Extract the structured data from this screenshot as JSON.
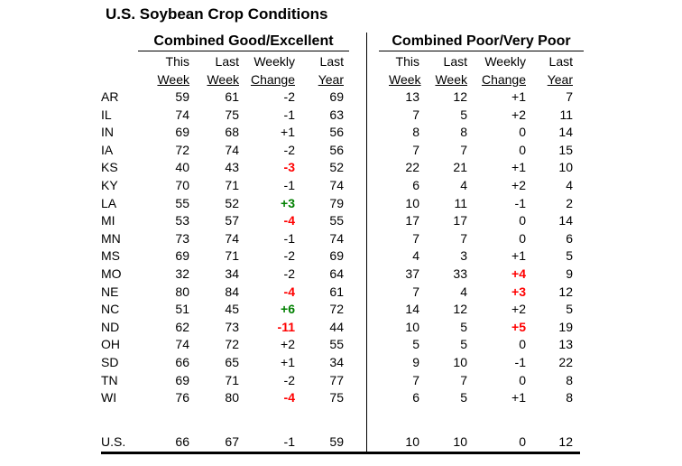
{
  "title": "U.S. Soybean Crop Conditions",
  "sections": [
    {
      "title": "Combined Good/Excellent"
    },
    {
      "title": "Combined Poor/Very Poor"
    }
  ],
  "column_headers": {
    "line1": [
      "This",
      "Last",
      "Weekly",
      "Last"
    ],
    "line2": [
      "Week",
      "Week",
      "Change",
      "Year"
    ]
  },
  "colors": {
    "highlight_red": "#ff0000",
    "highlight_green": "#008000",
    "text": "#000000",
    "background": "#ffffff"
  },
  "rows": [
    {
      "state": "AR",
      "good_excellent": {
        "this_week": "59",
        "last_week": "61",
        "change": "-2",
        "change_color": null,
        "last_year": "69"
      },
      "poor_very_poor": {
        "this_week": "13",
        "last_week": "12",
        "change": "+1",
        "change_color": null,
        "last_year": "7"
      }
    },
    {
      "state": "IL",
      "good_excellent": {
        "this_week": "74",
        "last_week": "75",
        "change": "-1",
        "change_color": null,
        "last_year": "63"
      },
      "poor_very_poor": {
        "this_week": "7",
        "last_week": "5",
        "change": "+2",
        "change_color": null,
        "last_year": "11"
      }
    },
    {
      "state": "IN",
      "good_excellent": {
        "this_week": "69",
        "last_week": "68",
        "change": "+1",
        "change_color": null,
        "last_year": "56"
      },
      "poor_very_poor": {
        "this_week": "8",
        "last_week": "8",
        "change": "0",
        "change_color": null,
        "last_year": "14"
      }
    },
    {
      "state": "IA",
      "good_excellent": {
        "this_week": "72",
        "last_week": "74",
        "change": "-2",
        "change_color": null,
        "last_year": "56"
      },
      "poor_very_poor": {
        "this_week": "7",
        "last_week": "7",
        "change": "0",
        "change_color": null,
        "last_year": "15"
      }
    },
    {
      "state": "KS",
      "good_excellent": {
        "this_week": "40",
        "last_week": "43",
        "change": "-3",
        "change_color": "red",
        "last_year": "52"
      },
      "poor_very_poor": {
        "this_week": "22",
        "last_week": "21",
        "change": "+1",
        "change_color": null,
        "last_year": "10"
      }
    },
    {
      "state": "KY",
      "good_excellent": {
        "this_week": "70",
        "last_week": "71",
        "change": "-1",
        "change_color": null,
        "last_year": "74"
      },
      "poor_very_poor": {
        "this_week": "6",
        "last_week": "4",
        "change": "+2",
        "change_color": null,
        "last_year": "4"
      }
    },
    {
      "state": "LA",
      "good_excellent": {
        "this_week": "55",
        "last_week": "52",
        "change": "+3",
        "change_color": "green",
        "last_year": "79"
      },
      "poor_very_poor": {
        "this_week": "10",
        "last_week": "11",
        "change": "-1",
        "change_color": null,
        "last_year": "2"
      }
    },
    {
      "state": "MI",
      "good_excellent": {
        "this_week": "53",
        "last_week": "57",
        "change": "-4",
        "change_color": "red",
        "last_year": "55"
      },
      "poor_very_poor": {
        "this_week": "17",
        "last_week": "17",
        "change": "0",
        "change_color": null,
        "last_year": "14"
      }
    },
    {
      "state": "MN",
      "good_excellent": {
        "this_week": "73",
        "last_week": "74",
        "change": "-1",
        "change_color": null,
        "last_year": "74"
      },
      "poor_very_poor": {
        "this_week": "7",
        "last_week": "7",
        "change": "0",
        "change_color": null,
        "last_year": "6"
      }
    },
    {
      "state": "MS",
      "good_excellent": {
        "this_week": "69",
        "last_week": "71",
        "change": "-2",
        "change_color": null,
        "last_year": "69"
      },
      "poor_very_poor": {
        "this_week": "4",
        "last_week": "3",
        "change": "+1",
        "change_color": null,
        "last_year": "5"
      }
    },
    {
      "state": "MO",
      "good_excellent": {
        "this_week": "32",
        "last_week": "34",
        "change": "-2",
        "change_color": null,
        "last_year": "64"
      },
      "poor_very_poor": {
        "this_week": "37",
        "last_week": "33",
        "change": "+4",
        "change_color": "red",
        "last_year": "9"
      }
    },
    {
      "state": "NE",
      "good_excellent": {
        "this_week": "80",
        "last_week": "84",
        "change": "-4",
        "change_color": "red",
        "last_year": "61"
      },
      "poor_very_poor": {
        "this_week": "7",
        "last_week": "4",
        "change": "+3",
        "change_color": "red",
        "last_year": "12"
      }
    },
    {
      "state": "NC",
      "good_excellent": {
        "this_week": "51",
        "last_week": "45",
        "change": "+6",
        "change_color": "green",
        "last_year": "72"
      },
      "poor_very_poor": {
        "this_week": "14",
        "last_week": "12",
        "change": "+2",
        "change_color": null,
        "last_year": "5"
      }
    },
    {
      "state": "ND",
      "good_excellent": {
        "this_week": "62",
        "last_week": "73",
        "change": "-11",
        "change_color": "red",
        "last_year": "44"
      },
      "poor_very_poor": {
        "this_week": "10",
        "last_week": "5",
        "change": "+5",
        "change_color": "red",
        "last_year": "19"
      }
    },
    {
      "state": "OH",
      "good_excellent": {
        "this_week": "74",
        "last_week": "72",
        "change": "+2",
        "change_color": null,
        "last_year": "55"
      },
      "poor_very_poor": {
        "this_week": "5",
        "last_week": "5",
        "change": "0",
        "change_color": null,
        "last_year": "13"
      }
    },
    {
      "state": "SD",
      "good_excellent": {
        "this_week": "66",
        "last_week": "65",
        "change": "+1",
        "change_color": null,
        "last_year": "34"
      },
      "poor_very_poor": {
        "this_week": "9",
        "last_week": "10",
        "change": "-1",
        "change_color": null,
        "last_year": "22"
      }
    },
    {
      "state": "TN",
      "good_excellent": {
        "this_week": "69",
        "last_week": "71",
        "change": "-2",
        "change_color": null,
        "last_year": "77"
      },
      "poor_very_poor": {
        "this_week": "7",
        "last_week": "7",
        "change": "0",
        "change_color": null,
        "last_year": "8"
      }
    },
    {
      "state": "WI",
      "good_excellent": {
        "this_week": "76",
        "last_week": "80",
        "change": "-4",
        "change_color": "red",
        "last_year": "75"
      },
      "poor_very_poor": {
        "this_week": "6",
        "last_week": "5",
        "change": "+1",
        "change_color": null,
        "last_year": "8"
      }
    }
  ],
  "us_row": {
    "state": "U.S.",
    "good_excellent": {
      "this_week": "66",
      "last_week": "67",
      "change": "-1",
      "change_color": null,
      "last_year": "59"
    },
    "poor_very_poor": {
      "this_week": "10",
      "last_week": "10",
      "change": "0",
      "change_color": null,
      "last_year": "12"
    }
  }
}
